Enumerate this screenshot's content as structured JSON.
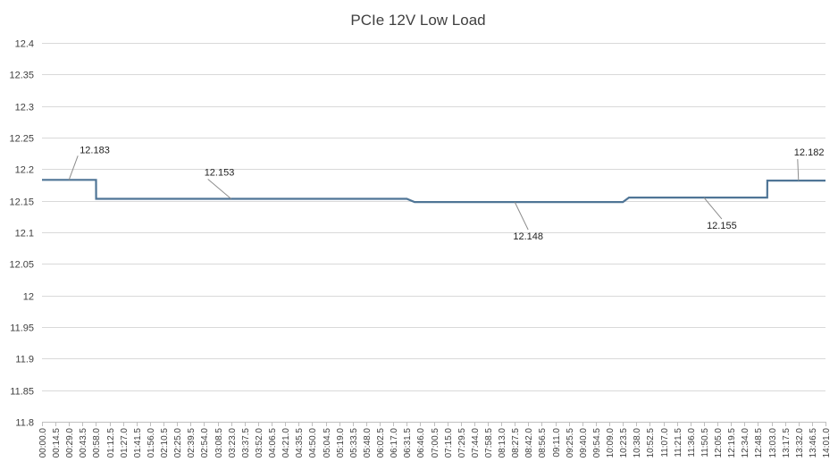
{
  "chart_data": {
    "type": "line",
    "title": "PCIe 12V Low Load",
    "xlabel": "",
    "ylabel": "",
    "ylim": [
      11.8,
      12.4
    ],
    "yticks": [
      "12.4",
      "12.35",
      "12.3",
      "12.25",
      "12.2",
      "12.15",
      "12.1",
      "12.05",
      "12",
      "11.95",
      "11.9",
      "11.85",
      "11.8"
    ],
    "grid": true,
    "legend": "none",
    "line_color": "#4f7596",
    "x_tick_labels": [
      "00:00.0",
      "00:14.5",
      "00:29.0",
      "00:43.5",
      "00:58.0",
      "01:12.5",
      "01:27.0",
      "01:41.5",
      "01:56.0",
      "02:10.5",
      "02:25.0",
      "02:39.5",
      "02:54.0",
      "03:08.5",
      "03:23.0",
      "03:37.5",
      "03:52.0",
      "04:06.5",
      "04:21.0",
      "04:35.5",
      "04:50.0",
      "05:04.5",
      "05:19.0",
      "05:33.5",
      "05:48.0",
      "06:02.5",
      "06:17.0",
      "06:31.5",
      "06:46.0",
      "07:00.5",
      "07:15.0",
      "07:29.5",
      "07:44.0",
      "07:58.5",
      "08:13.0",
      "08:27.5",
      "08:42.0",
      "08:56.5",
      "09:11.0",
      "09:25.5",
      "09:40.0",
      "09:54.5",
      "10:09.0",
      "10:23.5",
      "10:38.0",
      "10:52.5",
      "11:07.0",
      "11:21.5",
      "11:36.0",
      "11:50.5",
      "12:05.0",
      "12:19.5",
      "12:34.0",
      "12:48.5",
      "13:03.0",
      "13:17.5",
      "13:32.0",
      "13:46.5",
      "14:01.0"
    ],
    "series": [
      {
        "x": [
          "00:00.0",
          "00:43.5",
          "00:58.0",
          "00:58.1",
          "03:23.0",
          "06:31.5",
          "06:40.0",
          "08:27.5",
          "10:23.5",
          "10:30.0",
          "11:50.5",
          "12:58.5",
          "12:58.6",
          "13:32.0",
          "14:01.0"
        ],
        "values": [
          12.183,
          12.183,
          12.183,
          12.153,
          12.153,
          12.153,
          12.148,
          12.148,
          12.148,
          12.155,
          12.155,
          12.155,
          12.182,
          12.182,
          12.182
        ]
      }
    ],
    "annotations": [
      {
        "text": "12.183",
        "x": "00:29.0",
        "y": 12.183
      },
      {
        "text": "12.153",
        "x": "03:23.0",
        "y": 12.153
      },
      {
        "text": "12.148",
        "x": "08:27.5",
        "y": 12.148
      },
      {
        "text": "12.155",
        "x": "11:50.5",
        "y": 12.155
      },
      {
        "text": "12.182",
        "x": "13:32.0",
        "y": 12.182
      }
    ]
  }
}
